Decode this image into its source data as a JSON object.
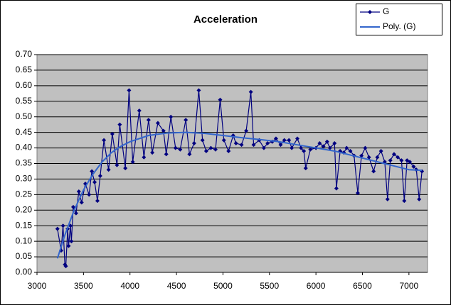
{
  "chart_data": {
    "type": "line",
    "title": "Acceleration",
    "series": [
      {
        "name": "G",
        "color": "#000080",
        "marker": "diamond",
        "x": [
          3220,
          3260,
          3280,
          3300,
          3310,
          3330,
          3340,
          3360,
          3370,
          3390,
          3420,
          3450,
          3480,
          3520,
          3560,
          3590,
          3620,
          3650,
          3680,
          3720,
          3770,
          3810,
          3860,
          3890,
          3950,
          3990,
          4030,
          4100,
          4150,
          4200,
          4240,
          4300,
          4360,
          4390,
          4440,
          4490,
          4540,
          4600,
          4640,
          4690,
          4740,
          4780,
          4820,
          4870,
          4920,
          4970,
          5010,
          5060,
          5110,
          5140,
          5200,
          5250,
          5300,
          5330,
          5390,
          5440,
          5480,
          5530,
          5570,
          5620,
          5660,
          5710,
          5740,
          5800,
          5840,
          5870,
          5890,
          5940,
          6000,
          6040,
          6080,
          6120,
          6150,
          6200,
          6220,
          6260,
          6300,
          6330,
          6370,
          6410,
          6450,
          6490,
          6530,
          6570,
          6620,
          6660,
          6700,
          6740,
          6770,
          6800,
          6840,
          6880,
          6920,
          6950,
          6980,
          7010,
          7050,
          7080,
          7110,
          7140
        ],
        "values": [
          0.14,
          0.07,
          0.15,
          0.025,
          0.02,
          0.14,
          0.085,
          0.15,
          0.1,
          0.21,
          0.19,
          0.26,
          0.225,
          0.285,
          0.25,
          0.325,
          0.29,
          0.23,
          0.31,
          0.425,
          0.33,
          0.445,
          0.345,
          0.475,
          0.335,
          0.585,
          0.355,
          0.52,
          0.37,
          0.49,
          0.385,
          0.48,
          0.455,
          0.38,
          0.5,
          0.4,
          0.395,
          0.49,
          0.38,
          0.415,
          0.585,
          0.425,
          0.39,
          0.4,
          0.395,
          0.555,
          0.425,
          0.39,
          0.44,
          0.415,
          0.41,
          0.455,
          0.58,
          0.41,
          0.425,
          0.4,
          0.415,
          0.42,
          0.43,
          0.41,
          0.425,
          0.425,
          0.4,
          0.43,
          0.4,
          0.39,
          0.335,
          0.395,
          0.4,
          0.415,
          0.405,
          0.42,
          0.4,
          0.415,
          0.27,
          0.39,
          0.385,
          0.4,
          0.39,
          0.375,
          0.255,
          0.375,
          0.4,
          0.37,
          0.325,
          0.37,
          0.39,
          0.355,
          0.235,
          0.36,
          0.38,
          0.37,
          0.36,
          0.23,
          0.36,
          0.355,
          0.34,
          0.33,
          0.235,
          0.325
        ]
      },
      {
        "name": "Poly. (G)",
        "color": "#3366cc",
        "marker": "none",
        "x": [
          3220,
          3300,
          3400,
          3500,
          3600,
          3700,
          3800,
          3900,
          4000,
          4200,
          4400,
          4600,
          4800,
          5000,
          5200,
          5400,
          5600,
          5800,
          6000,
          6200,
          6400,
          6600,
          6800,
          7000,
          7140
        ],
        "values": [
          0.045,
          0.12,
          0.2,
          0.265,
          0.315,
          0.355,
          0.385,
          0.405,
          0.42,
          0.44,
          0.448,
          0.45,
          0.447,
          0.44,
          0.433,
          0.427,
          0.42,
          0.41,
          0.4,
          0.39,
          0.375,
          0.36,
          0.345,
          0.33,
          0.328
        ]
      }
    ],
    "xlim": [
      3000,
      7200
    ],
    "xticks": [
      3000,
      3500,
      4000,
      4500,
      5000,
      5500,
      6000,
      6500,
      7000
    ],
    "ylim": [
      0,
      0.7
    ],
    "yticks": [
      {
        "value": 0,
        "label": "0.00"
      },
      {
        "value": 0.05,
        "label": "0.05"
      },
      {
        "value": 0.1,
        "label": "0.10"
      },
      {
        "value": 0.15,
        "label": "0.15"
      },
      {
        "value": 0.2,
        "label": "0.20"
      },
      {
        "value": 0.25,
        "label": "0.25"
      },
      {
        "value": 0.3,
        "label": "0.30"
      },
      {
        "value": 0.35,
        "label": "0.35"
      },
      {
        "value": 0.4,
        "label": "0.40"
      },
      {
        "value": 0.45,
        "label": "0.45"
      },
      {
        "value": 0.5,
        "label": "0.50"
      },
      {
        "value": 0.55,
        "label": "0.55"
      },
      {
        "value": 0.6,
        "label": "0.60"
      },
      {
        "value": 0.65,
        "label": "0.65"
      },
      {
        "value": 0.7,
        "label": "0.70"
      }
    ],
    "grid": true,
    "legend": "top-right"
  }
}
